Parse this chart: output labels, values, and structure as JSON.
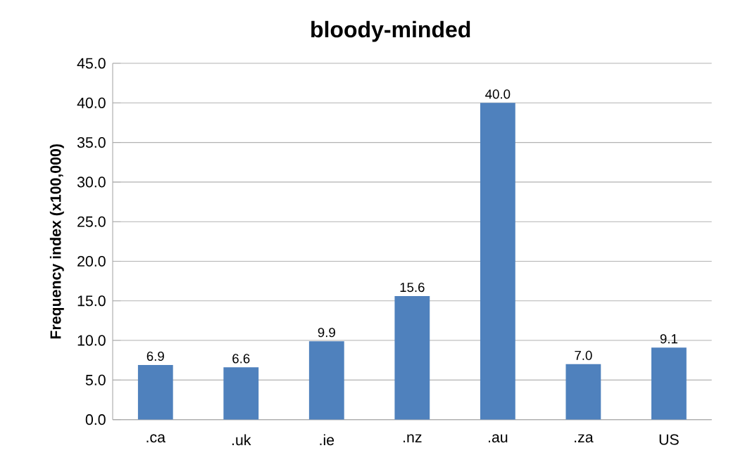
{
  "chart_data": {
    "type": "bar",
    "title": "bloody-minded",
    "ylabel": "Frequency index (x100,000)",
    "categories": [
      ".ca",
      ".uk",
      ".ie",
      ".nz",
      ".au",
      ".za",
      "US"
    ],
    "values": [
      6.9,
      6.6,
      9.9,
      15.6,
      40.0,
      7.0,
      9.1
    ],
    "value_labels": [
      "6.9",
      "6.6",
      "9.9",
      "15.6",
      "40.0",
      "7.0",
      "9.1"
    ],
    "color": "#4f81bd",
    "ylim": [
      0,
      45
    ],
    "yticks": [
      {
        "value": 0,
        "label": "0.0"
      },
      {
        "value": 5,
        "label": "5.0"
      },
      {
        "value": 10,
        "label": "10.0"
      },
      {
        "value": 15,
        "label": "15.0"
      },
      {
        "value": 20,
        "label": "20.0"
      },
      {
        "value": 25,
        "label": "25.0"
      },
      {
        "value": 30,
        "label": "30.0"
      },
      {
        "value": 35,
        "label": "35.0"
      },
      {
        "value": 40,
        "label": "40.0"
      },
      {
        "value": 45,
        "label": "45.0"
      }
    ],
    "grid": "y"
  }
}
